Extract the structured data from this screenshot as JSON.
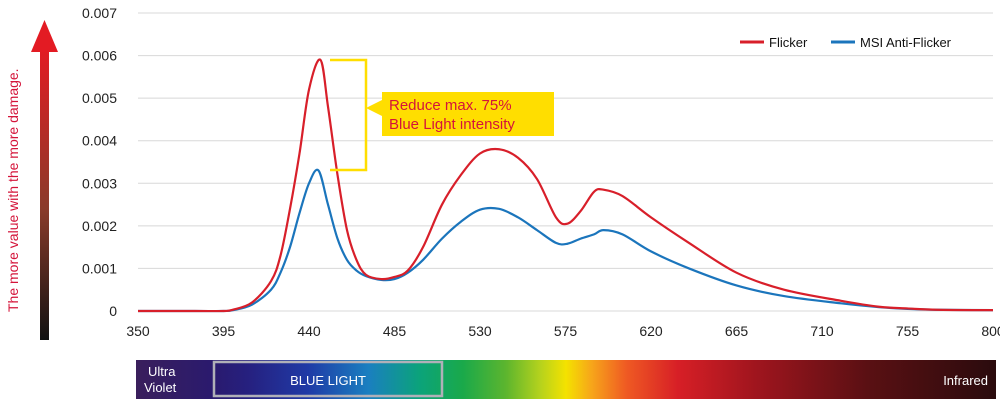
{
  "chart_data": {
    "type": "line",
    "ylabel": "The more value with the more damage.",
    "xlim": [
      350,
      800
    ],
    "ylim": [
      0,
      0.007
    ],
    "x_ticks": [
      "350",
      "395",
      "440",
      "485",
      "530",
      "575",
      "620",
      "665",
      "710",
      "755",
      "800"
    ],
    "y_ticks": [
      "0",
      "0.001",
      "0.002",
      "0.003",
      "0.004",
      "0.005",
      "0.006",
      "0.007"
    ],
    "grid": "horizontal",
    "legend_position": "top-right",
    "annotation": [
      "Reduce  max. 75%",
      "Blue Light intensity"
    ],
    "series": [
      {
        "name": "Flicker",
        "color": "#d81f2a",
        "points": [
          [
            350,
            0
          ],
          [
            380,
            0
          ],
          [
            395,
            0
          ],
          [
            400,
            3e-05
          ],
          [
            410,
            0.0002
          ],
          [
            420,
            0.0007
          ],
          [
            425,
            0.0013
          ],
          [
            430,
            0.0024
          ],
          [
            435,
            0.0037
          ],
          [
            440,
            0.0052
          ],
          [
            446,
            0.0059
          ],
          [
            450,
            0.0048
          ],
          [
            455,
            0.0032
          ],
          [
            460,
            0.0019
          ],
          [
            465,
            0.0012
          ],
          [
            470,
            0.00085
          ],
          [
            478,
            0.00075
          ],
          [
            485,
            0.0008
          ],
          [
            492,
            0.00095
          ],
          [
            500,
            0.0015
          ],
          [
            510,
            0.0025
          ],
          [
            520,
            0.0032
          ],
          [
            530,
            0.0037
          ],
          [
            540,
            0.0038
          ],
          [
            550,
            0.0036
          ],
          [
            560,
            0.0031
          ],
          [
            570,
            0.0022
          ],
          [
            576,
            0.00205
          ],
          [
            583,
            0.00235
          ],
          [
            590,
            0.0028
          ],
          [
            595,
            0.00285
          ],
          [
            605,
            0.0027
          ],
          [
            620,
            0.0022
          ],
          [
            640,
            0.0016
          ],
          [
            665,
            0.0009
          ],
          [
            690,
            0.0005
          ],
          [
            720,
            0.00024
          ],
          [
            740,
            0.0001
          ],
          [
            755,
            6e-05
          ],
          [
            770,
            3e-05
          ],
          [
            800,
            2e-05
          ]
        ]
      },
      {
        "name": "MSI Anti-Flicker",
        "color": "#1b75bc",
        "points": [
          [
            350,
            0
          ],
          [
            380,
            0
          ],
          [
            395,
            0
          ],
          [
            400,
            2e-05
          ],
          [
            410,
            0.00015
          ],
          [
            420,
            0.0005
          ],
          [
            425,
            0.0009
          ],
          [
            430,
            0.0015
          ],
          [
            435,
            0.0023
          ],
          [
            440,
            0.003
          ],
          [
            445,
            0.0033
          ],
          [
            450,
            0.0025
          ],
          [
            455,
            0.0017
          ],
          [
            460,
            0.0012
          ],
          [
            465,
            0.00095
          ],
          [
            470,
            0.00082
          ],
          [
            478,
            0.00073
          ],
          [
            485,
            0.00075
          ],
          [
            492,
            0.0009
          ],
          [
            500,
            0.0012
          ],
          [
            510,
            0.0017
          ],
          [
            520,
            0.0021
          ],
          [
            530,
            0.00238
          ],
          [
            540,
            0.0024
          ],
          [
            550,
            0.0022
          ],
          [
            560,
            0.0019
          ],
          [
            570,
            0.0016
          ],
          [
            576,
            0.00158
          ],
          [
            583,
            0.0017
          ],
          [
            590,
            0.0018
          ],
          [
            595,
            0.0019
          ],
          [
            605,
            0.0018
          ],
          [
            620,
            0.0014
          ],
          [
            640,
            0.001
          ],
          [
            665,
            0.0006
          ],
          [
            690,
            0.00035
          ],
          [
            720,
            0.00018
          ],
          [
            740,
            9e-05
          ],
          [
            755,
            5e-05
          ],
          [
            770,
            3e-05
          ],
          [
            800,
            2e-05
          ]
        ]
      }
    ]
  },
  "spectrum_band": {
    "ultraviolet_label": [
      "Ultra",
      "Violet"
    ],
    "blue_light_label": "BLUE LIGHT",
    "infrared_label": "Infrared"
  },
  "colors": {
    "flicker": "#d81f2a",
    "anti_flicker": "#1b75bc",
    "annotation_box": "#ffde00",
    "annotation_text": "#d4143a",
    "grid": "#d8d8d8",
    "axis_arrow_top": "#e31b23",
    "axis_arrow_bottom": "#111111"
  }
}
